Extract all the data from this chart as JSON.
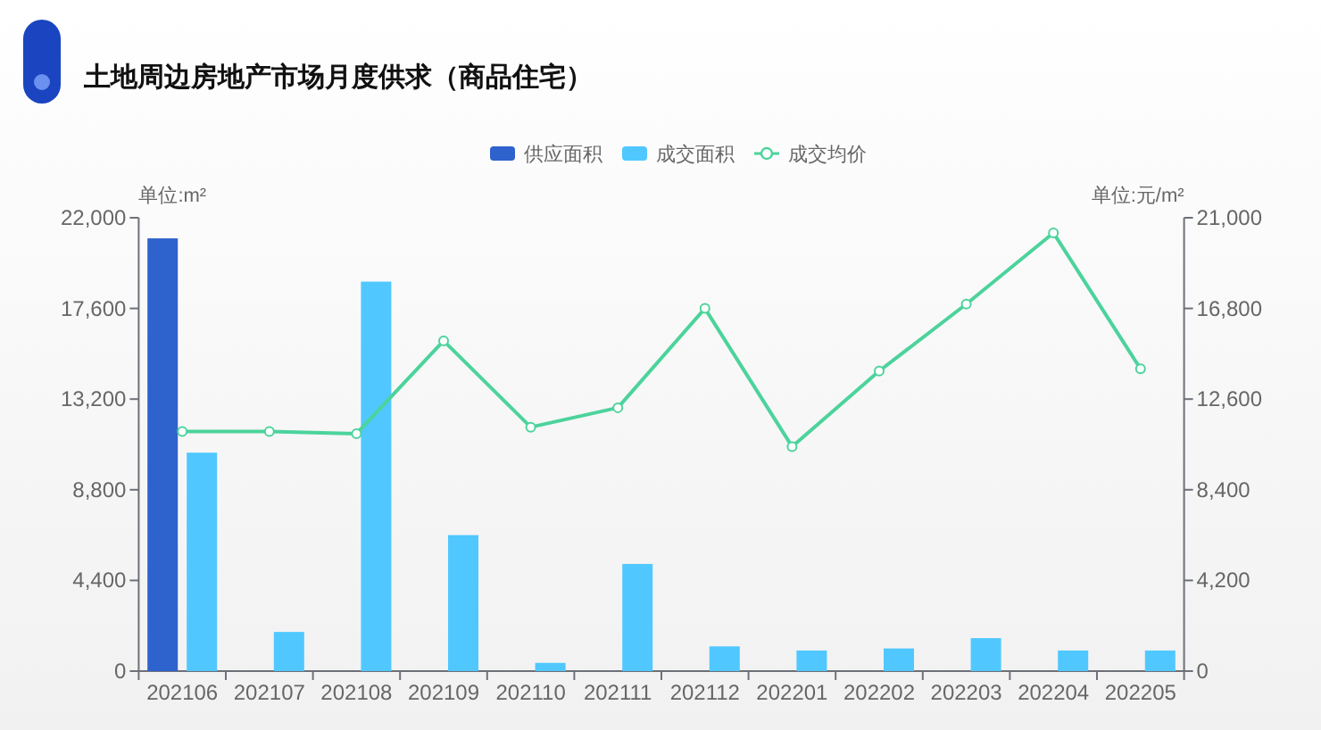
{
  "chart_data": {
    "type": "bar",
    "title": "土地周边房地产市场月度供求（商品住宅）",
    "categories": [
      "202106",
      "202107",
      "202108",
      "202109",
      "202110",
      "202111",
      "202112",
      "202201",
      "202202",
      "202203",
      "202204",
      "202205"
    ],
    "series": [
      {
        "name": "供应面积",
        "color": "#2e62cc",
        "values": [
          21000,
          null,
          null,
          null,
          null,
          null,
          null,
          null,
          null,
          null,
          null,
          null
        ]
      },
      {
        "name": "成交面积",
        "color": "#50c8ff",
        "values": [
          10600,
          1900,
          18900,
          6600,
          400,
          5200,
          1200,
          1000,
          1100,
          1600,
          1000,
          1000
        ]
      },
      {
        "name": "成交均价",
        "type": "line",
        "axis": "y2",
        "color": "#4cd39c",
        "marker": "circle",
        "values": [
          11100,
          11100,
          11000,
          15300,
          11300,
          12200,
          16800,
          10400,
          13900,
          17000,
          20300,
          14000
        ]
      }
    ],
    "ylabel": "单位:m²",
    "y2label": "单位:元/m²",
    "ylim": [
      0,
      22000
    ],
    "yticks": [
      0,
      {
        "value": 4400,
        "label": "4,400"
      },
      {
        "value": 8800,
        "label": "8,800"
      },
      {
        "value": 13200,
        "label": "13,200"
      },
      {
        "value": 17600,
        "label": "17,600"
      },
      {
        "value": 22000,
        "label": "22,000"
      }
    ],
    "y2lim": [
      0,
      21000
    ],
    "y2ticks": [
      0,
      {
        "value": 4200,
        "label": "4,200"
      },
      {
        "value": 8400,
        "label": "8,400"
      },
      {
        "value": 12600,
        "label": "12,600"
      },
      {
        "value": 16800,
        "label": "16,800"
      },
      {
        "value": 21000,
        "label": "21,000"
      }
    ],
    "legend": "top"
  }
}
